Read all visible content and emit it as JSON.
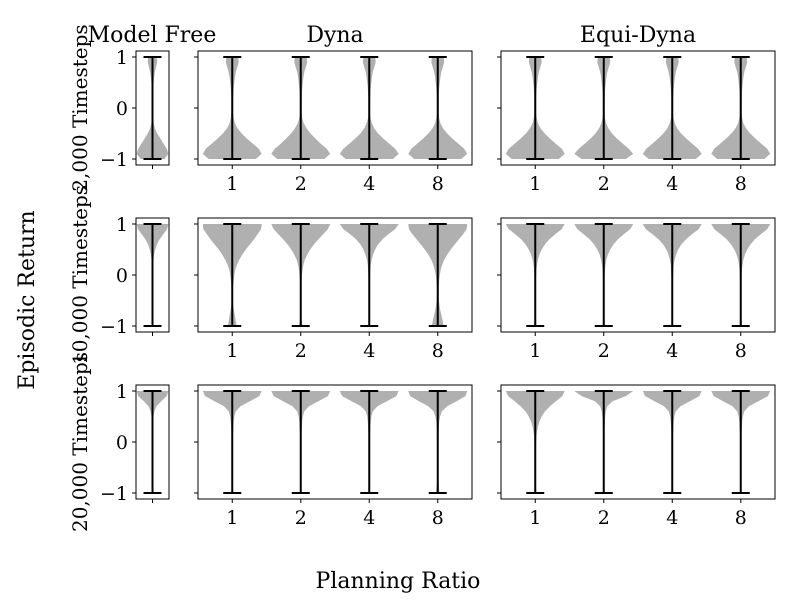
{
  "chart_data": {
    "type": "violin",
    "column_titles": [
      "Model Free",
      "Dyna",
      "Equi-Dyna"
    ],
    "row_labels": [
      "2,000 Timesteps",
      "10,000 Timesteps",
      "20,000 Timesteps"
    ],
    "ylabel": "Episodic Return",
    "xlabel": "Planning Ratio",
    "planning_ratios": [
      "1",
      "2",
      "4",
      "8"
    ],
    "yticks": [
      "1",
      "0",
      "−1"
    ],
    "ylim": [
      -1,
      1
    ],
    "density_y": [
      -1.0,
      -0.9,
      -0.8,
      -0.7,
      -0.6,
      -0.5,
      -0.4,
      -0.3,
      -0.2,
      -0.1,
      0.0,
      0.1,
      0.2,
      0.3,
      0.4,
      0.5,
      0.6,
      0.7,
      0.8,
      0.9,
      1.0
    ],
    "panels": [
      {
        "row": 0,
        "method": "Model Free",
        "violins": [
          {
            "x": "",
            "min": -1,
            "max": 1,
            "density": [
              0.75,
              1.0,
              0.9,
              0.7,
              0.5,
              0.3,
              0.15,
              0.07,
              0.04,
              0.03,
              0.03,
              0.03,
              0.03,
              0.04,
              0.05,
              0.07,
              0.1,
              0.15,
              0.22,
              0.3,
              0.28
            ]
          }
        ]
      },
      {
        "row": 0,
        "method": "Dyna",
        "violins": [
          {
            "x": "1",
            "min": -1,
            "max": 1,
            "density": [
              0.8,
              1.0,
              0.9,
              0.7,
              0.5,
              0.32,
              0.18,
              0.09,
              0.05,
              0.03,
              0.03,
              0.03,
              0.03,
              0.04,
              0.05,
              0.07,
              0.09,
              0.12,
              0.17,
              0.22,
              0.2
            ]
          },
          {
            "x": "2",
            "min": -1,
            "max": 1,
            "density": [
              0.8,
              1.0,
              0.88,
              0.68,
              0.5,
              0.33,
              0.2,
              0.1,
              0.05,
              0.03,
              0.03,
              0.03,
              0.03,
              0.04,
              0.05,
              0.07,
              0.09,
              0.12,
              0.17,
              0.22,
              0.2
            ]
          },
          {
            "x": "4",
            "min": -1,
            "max": 1,
            "density": [
              0.8,
              1.0,
              0.88,
              0.68,
              0.48,
              0.3,
              0.17,
              0.09,
              0.04,
              0.03,
              0.03,
              0.03,
              0.03,
              0.04,
              0.05,
              0.07,
              0.09,
              0.12,
              0.17,
              0.22,
              0.2
            ]
          },
          {
            "x": "8",
            "min": -1,
            "max": 1,
            "density": [
              0.8,
              1.0,
              0.9,
              0.7,
              0.5,
              0.32,
              0.18,
              0.09,
              0.05,
              0.03,
              0.03,
              0.03,
              0.03,
              0.04,
              0.05,
              0.07,
              0.09,
              0.12,
              0.17,
              0.22,
              0.2
            ]
          }
        ]
      },
      {
        "row": 0,
        "method": "Equi-Dyna",
        "violins": [
          {
            "x": "1",
            "min": -1,
            "max": 1,
            "density": [
              0.8,
              1.0,
              0.9,
              0.7,
              0.5,
              0.32,
              0.18,
              0.09,
              0.05,
              0.03,
              0.03,
              0.03,
              0.03,
              0.04,
              0.05,
              0.07,
              0.09,
              0.12,
              0.17,
              0.22,
              0.2
            ]
          },
          {
            "x": "2",
            "min": -1,
            "max": 1,
            "density": [
              0.75,
              1.0,
              0.85,
              0.65,
              0.45,
              0.28,
              0.16,
              0.08,
              0.04,
              0.03,
              0.03,
              0.03,
              0.03,
              0.04,
              0.05,
              0.07,
              0.09,
              0.12,
              0.17,
              0.22,
              0.2
            ]
          },
          {
            "x": "4",
            "min": -1,
            "max": 1,
            "density": [
              0.8,
              1.0,
              0.88,
              0.68,
              0.48,
              0.3,
              0.17,
              0.09,
              0.04,
              0.03,
              0.03,
              0.03,
              0.03,
              0.04,
              0.05,
              0.07,
              0.09,
              0.12,
              0.17,
              0.22,
              0.2
            ]
          },
          {
            "x": "8",
            "min": -1,
            "max": 1,
            "density": [
              0.8,
              1.0,
              0.9,
              0.7,
              0.5,
              0.32,
              0.18,
              0.09,
              0.05,
              0.03,
              0.03,
              0.03,
              0.03,
              0.04,
              0.05,
              0.07,
              0.09,
              0.12,
              0.17,
              0.22,
              0.2
            ]
          }
        ]
      },
      {
        "row": 1,
        "method": "Model Free",
        "violins": [
          {
            "x": "",
            "min": -1,
            "max": 1,
            "density": [
              0.02,
              0.02,
              0.02,
              0.02,
              0.02,
              0.02,
              0.02,
              0.02,
              0.02,
              0.02,
              0.02,
              0.03,
              0.04,
              0.06,
              0.1,
              0.17,
              0.28,
              0.45,
              0.68,
              0.92,
              1.0
            ]
          }
        ]
      },
      {
        "row": 1,
        "method": "Dyna",
        "violins": [
          {
            "x": "1",
            "min": -1,
            "max": 1,
            "density": [
              0.15,
              0.12,
              0.09,
              0.06,
              0.03,
              0.02,
              0.02,
              0.02,
              0.03,
              0.05,
              0.07,
              0.1,
              0.16,
              0.24,
              0.34,
              0.46,
              0.6,
              0.74,
              0.86,
              0.98,
              1.0
            ]
          },
          {
            "x": "2",
            "min": -1,
            "max": 1,
            "density": [
              0.06,
              0.03,
              0.02,
              0.01,
              0.01,
              0.01,
              0.01,
              0.01,
              0.02,
              0.03,
              0.04,
              0.06,
              0.09,
              0.14,
              0.22,
              0.32,
              0.45,
              0.6,
              0.76,
              0.92,
              1.0
            ]
          },
          {
            "x": "4",
            "min": -1,
            "max": 1,
            "density": [
              0.02,
              0.02,
              0.02,
              0.02,
              0.02,
              0.02,
              0.02,
              0.02,
              0.02,
              0.02,
              0.03,
              0.04,
              0.05,
              0.08,
              0.13,
              0.2,
              0.3,
              0.45,
              0.65,
              0.88,
              1.0
            ]
          },
          {
            "x": "8",
            "min": -1,
            "max": 1,
            "density": [
              0.2,
              0.17,
              0.13,
              0.09,
              0.06,
              0.04,
              0.03,
              0.03,
              0.04,
              0.05,
              0.07,
              0.1,
              0.15,
              0.22,
              0.32,
              0.44,
              0.58,
              0.72,
              0.86,
              0.98,
              1.0
            ]
          }
        ]
      },
      {
        "row": 1,
        "method": "Equi-Dyna",
        "violins": [
          {
            "x": "1",
            "min": -1,
            "max": 1,
            "density": [
              0.04,
              0.03,
              0.02,
              0.02,
              0.02,
              0.02,
              0.02,
              0.02,
              0.02,
              0.02,
              0.03,
              0.04,
              0.06,
              0.09,
              0.14,
              0.22,
              0.33,
              0.48,
              0.68,
              0.9,
              1.0
            ]
          },
          {
            "x": "2",
            "min": -1,
            "max": 1,
            "density": [
              0.04,
              0.03,
              0.02,
              0.02,
              0.02,
              0.02,
              0.02,
              0.02,
              0.02,
              0.02,
              0.03,
              0.04,
              0.06,
              0.09,
              0.14,
              0.22,
              0.33,
              0.48,
              0.68,
              0.9,
              1.0
            ]
          },
          {
            "x": "4",
            "min": -1,
            "max": 1,
            "density": [
              0.02,
              0.02,
              0.02,
              0.02,
              0.02,
              0.02,
              0.02,
              0.02,
              0.02,
              0.02,
              0.03,
              0.04,
              0.05,
              0.08,
              0.13,
              0.2,
              0.31,
              0.47,
              0.67,
              0.9,
              1.0
            ]
          },
          {
            "x": "8",
            "min": -1,
            "max": 1,
            "density": [
              0.04,
              0.03,
              0.02,
              0.02,
              0.02,
              0.02,
              0.02,
              0.02,
              0.02,
              0.02,
              0.03,
              0.04,
              0.06,
              0.09,
              0.14,
              0.22,
              0.33,
              0.48,
              0.68,
              0.9,
              1.0
            ]
          }
        ]
      },
      {
        "row": 2,
        "method": "Model Free",
        "violins": [
          {
            "x": "",
            "min": -1,
            "max": 1,
            "density": [
              0.02,
              0.02,
              0.02,
              0.02,
              0.02,
              0.02,
              0.02,
              0.02,
              0.02,
              0.02,
              0.02,
              0.02,
              0.02,
              0.03,
              0.04,
              0.06,
              0.12,
              0.25,
              0.55,
              0.9,
              1.0
            ]
          }
        ]
      },
      {
        "row": 2,
        "method": "Dyna",
        "violins": [
          {
            "x": "1",
            "min": -1,
            "max": 1,
            "density": [
              0.02,
              0.02,
              0.02,
              0.02,
              0.02,
              0.02,
              0.02,
              0.02,
              0.02,
              0.02,
              0.02,
              0.02,
              0.03,
              0.04,
              0.05,
              0.07,
              0.12,
              0.28,
              0.6,
              0.92,
              1.0
            ]
          },
          {
            "x": "2",
            "min": -1,
            "max": 1,
            "density": [
              0.02,
              0.02,
              0.02,
              0.02,
              0.02,
              0.02,
              0.02,
              0.02,
              0.02,
              0.02,
              0.02,
              0.02,
              0.03,
              0.04,
              0.05,
              0.07,
              0.12,
              0.28,
              0.6,
              0.92,
              1.0
            ]
          },
          {
            "x": "4",
            "min": -1,
            "max": 1,
            "density": [
              0.02,
              0.02,
              0.02,
              0.02,
              0.02,
              0.02,
              0.02,
              0.02,
              0.02,
              0.02,
              0.02,
              0.02,
              0.03,
              0.04,
              0.05,
              0.07,
              0.12,
              0.28,
              0.6,
              0.92,
              1.0
            ]
          },
          {
            "x": "8",
            "min": -1,
            "max": 1,
            "density": [
              0.06,
              0.04,
              0.03,
              0.02,
              0.02,
              0.02,
              0.02,
              0.02,
              0.02,
              0.02,
              0.02,
              0.02,
              0.03,
              0.04,
              0.05,
              0.08,
              0.14,
              0.32,
              0.64,
              0.94,
              1.0
            ]
          }
        ]
      },
      {
        "row": 2,
        "method": "Equi-Dyna",
        "violins": [
          {
            "x": "1",
            "min": -1,
            "max": 1,
            "density": [
              0.04,
              0.03,
              0.02,
              0.02,
              0.02,
              0.02,
              0.02,
              0.02,
              0.02,
              0.02,
              0.03,
              0.04,
              0.06,
              0.09,
              0.14,
              0.22,
              0.33,
              0.5,
              0.7,
              0.92,
              1.0
            ]
          },
          {
            "x": "2",
            "min": -1,
            "max": 1,
            "density": [
              0.02,
              0.02,
              0.02,
              0.02,
              0.02,
              0.02,
              0.02,
              0.02,
              0.02,
              0.02,
              0.02,
              0.02,
              0.02,
              0.03,
              0.04,
              0.05,
              0.07,
              0.12,
              0.3,
              0.75,
              1.0
            ]
          },
          {
            "x": "4",
            "min": -1,
            "max": 1,
            "density": [
              0.02,
              0.02,
              0.02,
              0.02,
              0.02,
              0.02,
              0.02,
              0.02,
              0.02,
              0.02,
              0.02,
              0.02,
              0.03,
              0.04,
              0.05,
              0.07,
              0.12,
              0.28,
              0.6,
              0.92,
              1.0
            ]
          },
          {
            "x": "8",
            "min": -1,
            "max": 1,
            "density": [
              0.02,
              0.02,
              0.02,
              0.02,
              0.02,
              0.02,
              0.02,
              0.02,
              0.02,
              0.02,
              0.02,
              0.02,
              0.03,
              0.04,
              0.05,
              0.07,
              0.12,
              0.28,
              0.6,
              0.92,
              1.0
            ]
          }
        ]
      }
    ]
  }
}
